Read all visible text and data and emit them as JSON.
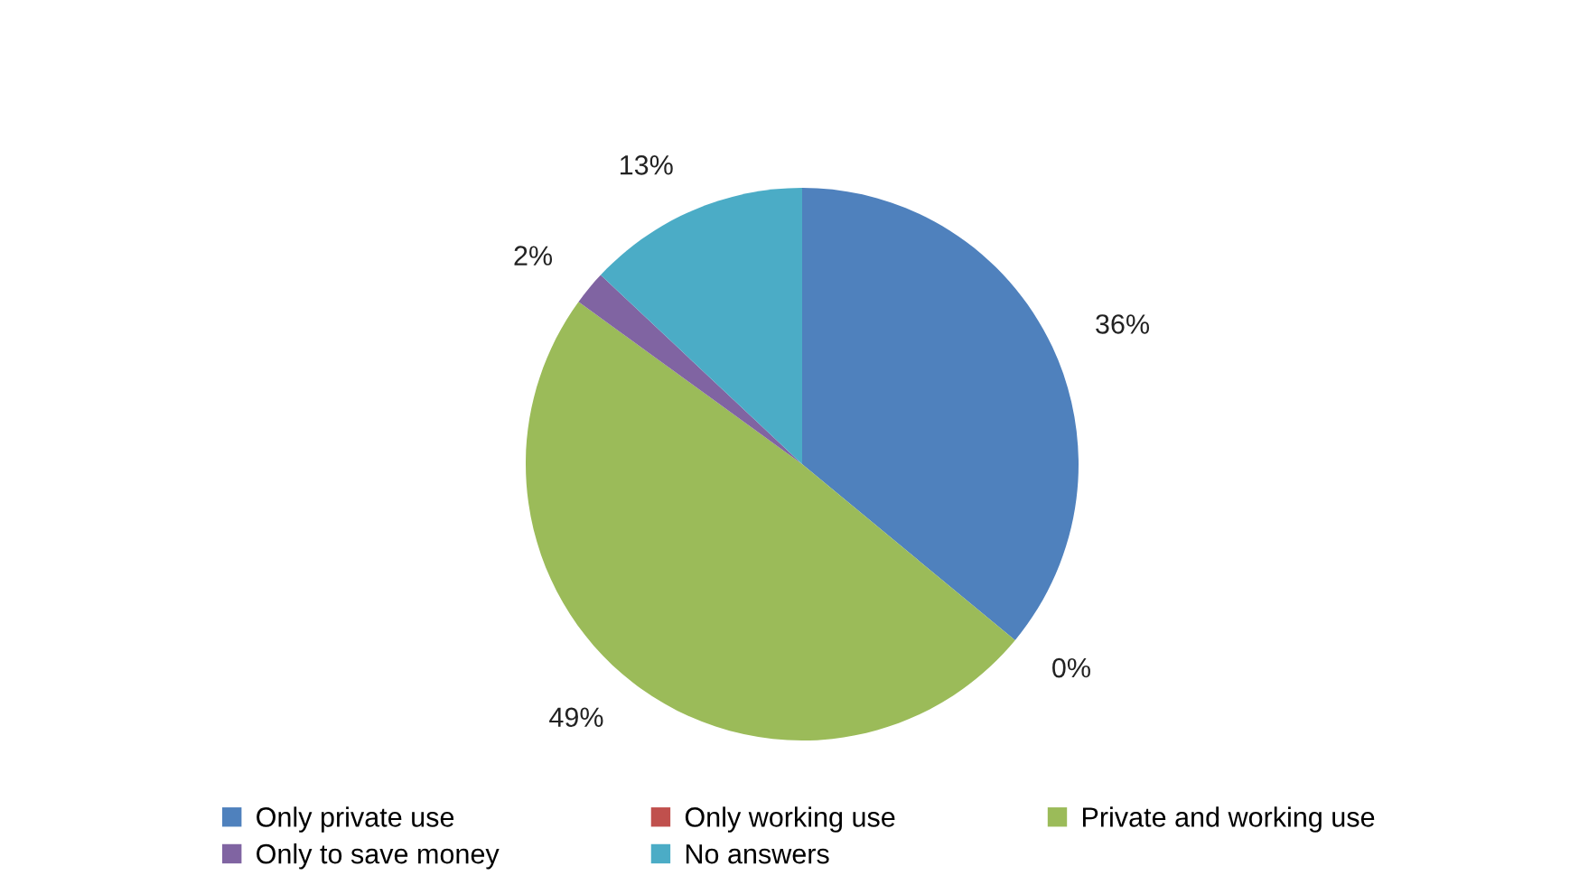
{
  "chart_data": {
    "type": "pie",
    "categories": [
      "Only private use",
      "Only working use",
      "Private and working use",
      "Only to save money",
      "No answers"
    ],
    "values": [
      36,
      0,
      49,
      2,
      13
    ],
    "colors": [
      "#4f81bd",
      "#c0504d",
      "#9bbb59",
      "#8064a2",
      "#4bacc6"
    ],
    "value_labels": [
      "36%",
      "0%",
      "49%",
      "2%",
      "13%"
    ],
    "legend": "bottom"
  }
}
